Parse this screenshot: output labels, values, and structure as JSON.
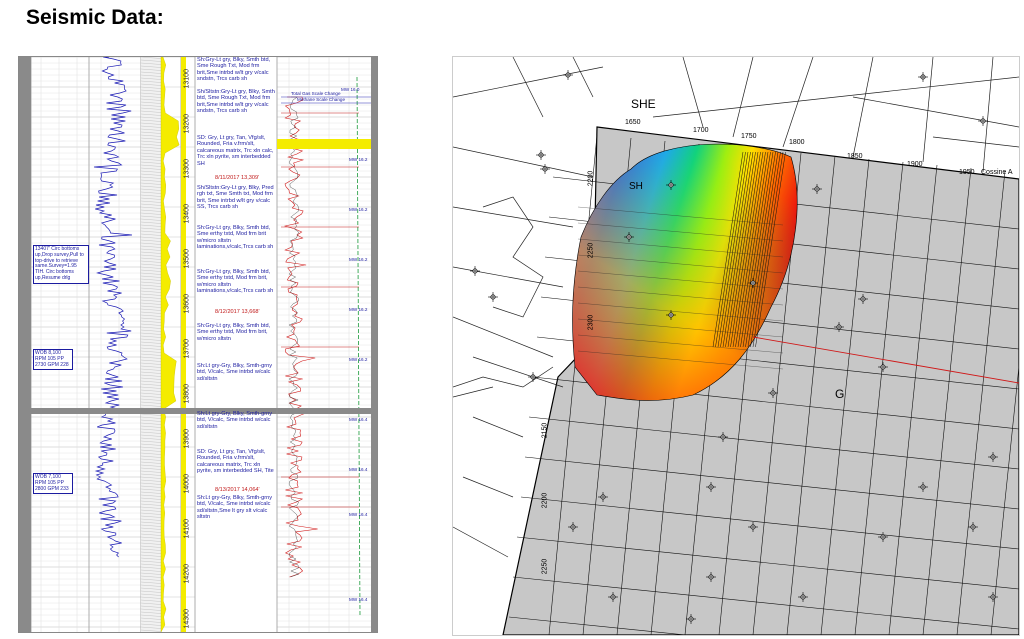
{
  "page": {
    "title": "Seismic Data:"
  },
  "log": {
    "depths": [
      "13100",
      "13200",
      "13300",
      "13400",
      "13500",
      "13600",
      "13700",
      "13800",
      "13900",
      "14000",
      "14100",
      "14200",
      "14300"
    ],
    "descriptions": [
      {
        "text": "Sh:Gry-Lt gry, Blky, Smth btd, Sme Rough Txt, Mod frm brit,Sme intrbd w/lt gry v/calc sndstn, Trcs carb sh",
        "date": false
      },
      {
        "text": "Sh/Sltstn:Gry-Lt gry, Blky, Smth btd, Sme Rough Txt, Mod frm brit,Sme intrbd w/lt gry v/calc sndstn, Trcs carb sh",
        "date": false
      },
      {
        "text": "SD: Gry, Lt gry, Tan, Vfg/slt, Rounded, Fria v.frm/slt, calcareous matrix, Trc xln calc, Trc xln pyrite, sm interbedded SH",
        "date": false
      },
      {
        "text": "8/11/2017 13,309'",
        "date": true
      },
      {
        "text": "Sh/Sltstn:Gry-Lt gry, Blky, Pred rgh txt, Sme Smth txt, Mod frm brit, Sme intrbd w/lt gry v/calc SS, Trcs carb sh",
        "date": false
      },
      {
        "text": "Sh:Gry-Lt gry, Blky, Smth btd, Sme erthy txtd, Mod frm brit w/micro sltstn laminations,v/calc,Trcs carb sh",
        "date": false
      },
      {
        "text": "Sh:Gry-Lt gry, Blky, Smth btd, Sme erthy txtd, Mod frm brit, w/micro sltstn laminations,v/calc,Trcs carb sh",
        "date": false
      },
      {
        "text": "8/12/2017 13,668'",
        "date": true
      },
      {
        "text": "Sh:Gry-Lt gry, Blky, Smth btd, Sme erthy txtd, Mod frm brit, w/micro sltstn",
        "date": false
      },
      {
        "text": "Sh:Lt gry-Gry, Blky, Smth-grny btd, V/calc, Sme intrbd w/calc sd/sltstn",
        "date": false
      },
      {
        "text": "Sh:Lt gry-Gry, Blky, Smth-grny btd, V/calc, Sme intrbd w/calc sd/sltstn",
        "date": false
      },
      {
        "text": "SD: Gry, Lt gry, Tan, Vfg/slt, Rounded, Fria v.frm/slt, calcareous matrix, Trc xln pyrite, sm interbedded SH, Tite",
        "date": false
      },
      {
        "text": "8/13/2017 14,064'",
        "date": true
      },
      {
        "text": "Sh:Lt gry-Gry, Blky, Smth-grny btd, V/calc, Sme intrbd w/calc sd/sltstn,Sme lt gry slt v/calc sltstn",
        "date": false
      }
    ],
    "notes": [
      {
        "text": "13407' Circ bottoms up,Drop survey,Pull to top-drive to retrieve same.Survey=1.95 TIH. Circ bottoms up,Resume drlg"
      },
      {
        "text": "WOB 8,100 RPM 105 PP 2730 GPM 228"
      },
      {
        "text": "WOB 7,100 RPM 105 PP 2800 GPM 233"
      }
    ],
    "right_labels": [
      "Total Gas Scale Change",
      "Methane Scale Change",
      "MW 16.0",
      "MW 16.2",
      "MW 16.2",
      "MW 16.2",
      "MW 16.2",
      "MW 16.2",
      "MW 16.4",
      "MW 16.4",
      "MW 16.4",
      "MW 16.4"
    ]
  },
  "map": {
    "labels": {
      "she": "SHE",
      "g": "G",
      "cossine": "Cossine A",
      "sh": "SH"
    },
    "grid_top": [
      "1650",
      "1700",
      "1750",
      "1800",
      "1850",
      "1900",
      "1950"
    ],
    "grid_left": [
      "2200",
      "2250",
      "2300"
    ],
    "grid_bottom_left": [
      "2150",
      "2200",
      "2250"
    ]
  }
}
